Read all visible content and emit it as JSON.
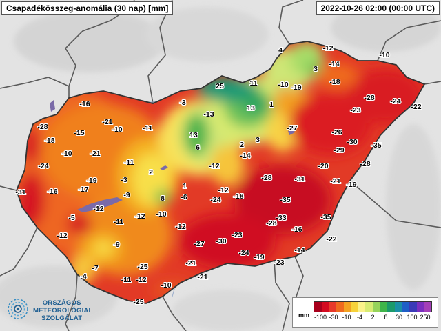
{
  "title": "Csapadékösszeg-anomália (30 nap) [mm]",
  "timestamp": "2022-10-26 02:00 (00:00 UTC)",
  "logo": {
    "lines": [
      "ORSZÁGOS",
      "METEOROLÓGIAI",
      "SZOLGÁLAT"
    ],
    "color": "#1f5f92"
  },
  "legend": {
    "unit": "mm",
    "ticks": [
      "-100",
      "-30",
      "-10",
      "-4",
      "2",
      "8",
      "30",
      "100",
      "250"
    ],
    "colors": [
      "#a8001c",
      "#d40a20",
      "#e8392a",
      "#ef6a1e",
      "#f3a221",
      "#f7d23a",
      "#fbf28a",
      "#d8eb73",
      "#96d35b",
      "#3fb54a",
      "#1b9a6b",
      "#1a8fa6",
      "#1f5fc7",
      "#3a3ab8",
      "#7a2fbf",
      "#a43fb8"
    ]
  },
  "colors": {
    "background_land": "#dedede",
    "border": "#5a5a5a",
    "lake": "#7a6aa8"
  },
  "stations": [
    {
      "v": "-12"
    },
    {
      "v": "-10"
    },
    {
      "v": "4"
    },
    {
      "v": "3"
    },
    {
      "v": "-14"
    },
    {
      "v": "-18"
    },
    {
      "v": "25"
    },
    {
      "v": "11"
    },
    {
      "v": "-10"
    },
    {
      "v": "-19"
    },
    {
      "v": "-28"
    },
    {
      "v": "-24"
    },
    {
      "v": "-22"
    },
    {
      "v": "-16"
    },
    {
      "v": "-3"
    },
    {
      "v": "13"
    },
    {
      "v": "1"
    },
    {
      "v": "-13"
    },
    {
      "v": "-21"
    },
    {
      "v": "-23"
    },
    {
      "v": "-28"
    },
    {
      "v": "-15"
    },
    {
      "v": "-10"
    },
    {
      "v": "-11"
    },
    {
      "v": "-27"
    },
    {
      "v": "-18"
    },
    {
      "v": "13"
    },
    {
      "v": "-26"
    },
    {
      "v": "-10"
    },
    {
      "v": "-21"
    },
    {
      "v": "6"
    },
    {
      "v": "2"
    },
    {
      "v": "3"
    },
    {
      "v": "-30"
    },
    {
      "v": "-35"
    },
    {
      "v": "-29"
    },
    {
      "v": "-14"
    },
    {
      "v": "-24"
    },
    {
      "v": "-11"
    },
    {
      "v": "-12"
    },
    {
      "v": "-20"
    },
    {
      "v": "-28"
    },
    {
      "v": "2"
    },
    {
      "v": "-19"
    },
    {
      "v": "-3"
    },
    {
      "v": "1"
    },
    {
      "v": "-28"
    },
    {
      "v": "-31"
    },
    {
      "v": "-21"
    },
    {
      "v": "-19"
    },
    {
      "v": "-17"
    },
    {
      "v": "-31"
    },
    {
      "v": "-16"
    },
    {
      "v": "-9"
    },
    {
      "v": "8"
    },
    {
      "v": "-6"
    },
    {
      "v": "-12"
    },
    {
      "v": "-24"
    },
    {
      "v": "-18"
    },
    {
      "v": "-35"
    },
    {
      "v": "-12"
    },
    {
      "v": "-5"
    },
    {
      "v": "-11"
    },
    {
      "v": "-12"
    },
    {
      "v": "-10"
    },
    {
      "v": "-33"
    },
    {
      "v": "-28"
    },
    {
      "v": "-35"
    },
    {
      "v": "-16"
    },
    {
      "v": "-12"
    },
    {
      "v": "-12"
    },
    {
      "v": "-23"
    },
    {
      "v": "-27"
    },
    {
      "v": "-30"
    },
    {
      "v": "-22"
    },
    {
      "v": "-9"
    },
    {
      "v": "-24"
    },
    {
      "v": "-19"
    },
    {
      "v": "-14"
    },
    {
      "v": "-7"
    },
    {
      "v": "-25"
    },
    {
      "v": "-21"
    },
    {
      "v": "-23"
    },
    {
      "v": "-4"
    },
    {
      "v": "-11"
    },
    {
      "v": "-12"
    },
    {
      "v": "-21"
    },
    {
      "v": "-10"
    },
    {
      "v": "-25"
    }
  ]
}
